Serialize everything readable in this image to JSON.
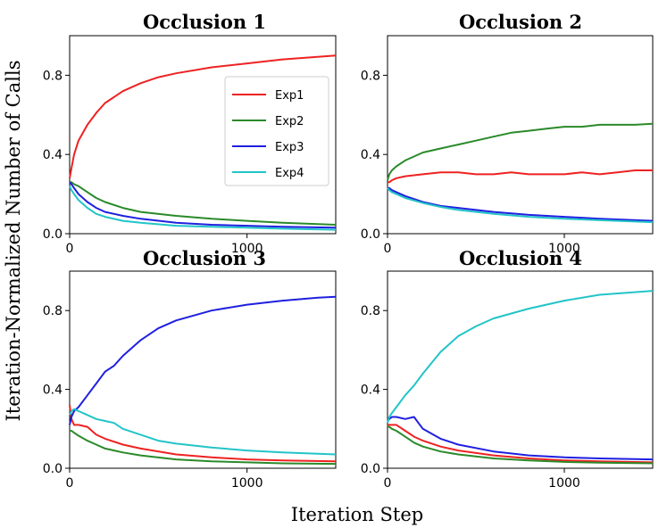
{
  "chart_data": {
    "type": "line",
    "xlabel": "Iteration Step",
    "ylabel": "Iteration-Normalized Number of Calls",
    "xlim": [
      0,
      1500
    ],
    "ylim": [
      0,
      1.0
    ],
    "x_ticks": [
      0,
      1000
    ],
    "y_ticks": [
      0.0,
      0.4,
      0.8
    ],
    "legend": {
      "placement": "inside panel 1, right",
      "entries": [
        "Exp1",
        "Exp2",
        "Exp3",
        "Exp4"
      ]
    },
    "colors": {
      "Exp1": "#ee2222",
      "Exp2": "#2a8a2a",
      "Exp3": "#1f1fe0",
      "Exp4": "#22c4c8"
    },
    "panels": [
      {
        "title": "Occlusion 1",
        "series": [
          {
            "name": "Exp1",
            "x": [
              0,
              10,
              25,
              50,
              100,
              150,
              200,
              300,
              400,
              500,
              600,
              800,
              1000,
              1200,
              1500
            ],
            "values": [
              0.28,
              0.33,
              0.4,
              0.47,
              0.55,
              0.61,
              0.66,
              0.72,
              0.76,
              0.79,
              0.81,
              0.84,
              0.86,
              0.88,
              0.9
            ]
          },
          {
            "name": "Exp2",
            "x": [
              0,
              10,
              25,
              50,
              100,
              150,
              200,
              300,
              400,
              600,
              800,
              1000,
              1200,
              1500
            ],
            "values": [
              0.26,
              0.26,
              0.25,
              0.24,
              0.21,
              0.18,
              0.16,
              0.13,
              0.11,
              0.09,
              0.075,
              0.065,
              0.055,
              0.045
            ]
          },
          {
            "name": "Exp3",
            "x": [
              0,
              10,
              25,
              50,
              100,
              150,
              200,
              300,
              400,
              600,
              800,
              1000,
              1200,
              1500
            ],
            "values": [
              0.26,
              0.25,
              0.23,
              0.2,
              0.16,
              0.13,
              0.11,
              0.09,
              0.075,
              0.055,
              0.045,
              0.04,
              0.035,
              0.03
            ]
          },
          {
            "name": "Exp4",
            "x": [
              0,
              10,
              25,
              50,
              100,
              150,
              200,
              300,
              400,
              600,
              800,
              1000,
              1200,
              1500
            ],
            "values": [
              0.24,
              0.22,
              0.2,
              0.17,
              0.13,
              0.1,
              0.085,
              0.065,
              0.055,
              0.04,
              0.035,
              0.03,
              0.025,
              0.02
            ]
          }
        ]
      },
      {
        "title": "Occlusion 2",
        "series": [
          {
            "name": "Exp1",
            "x": [
              0,
              10,
              25,
              50,
              100,
              200,
              300,
              400,
              500,
              600,
              700,
              800,
              900,
              1000,
              1100,
              1200,
              1300,
              1400,
              1500
            ],
            "values": [
              0.26,
              0.26,
              0.27,
              0.28,
              0.29,
              0.3,
              0.31,
              0.31,
              0.3,
              0.3,
              0.31,
              0.3,
              0.3,
              0.3,
              0.31,
              0.3,
              0.31,
              0.32,
              0.32
            ]
          },
          {
            "name": "Exp2",
            "x": [
              0,
              10,
              25,
              50,
              100,
              200,
              300,
              400,
              500,
              600,
              700,
              800,
              900,
              1000,
              1100,
              1200,
              1300,
              1400,
              1500
            ],
            "values": [
              0.27,
              0.3,
              0.32,
              0.34,
              0.37,
              0.41,
              0.43,
              0.45,
              0.47,
              0.49,
              0.51,
              0.52,
              0.53,
              0.54,
              0.54,
              0.55,
              0.55,
              0.55,
              0.555
            ]
          },
          {
            "name": "Exp3",
            "x": [
              0,
              10,
              25,
              50,
              100,
              200,
              300,
              400,
              600,
              800,
              1000,
              1200,
              1500
            ],
            "values": [
              0.23,
              0.23,
              0.22,
              0.21,
              0.19,
              0.16,
              0.14,
              0.13,
              0.11,
              0.095,
              0.085,
              0.075,
              0.065
            ]
          },
          {
            "name": "Exp4",
            "x": [
              0,
              10,
              25,
              50,
              100,
              200,
              300,
              400,
              600,
              800,
              1000,
              1200,
              1500
            ],
            "values": [
              0.23,
              0.22,
              0.21,
              0.2,
              0.18,
              0.155,
              0.135,
              0.12,
              0.1,
              0.085,
              0.075,
              0.068,
              0.058
            ]
          }
        ]
      },
      {
        "title": "Occlusion 3",
        "series": [
          {
            "name": "Exp1",
            "x": [
              0,
              10,
              25,
              50,
              100,
              150,
              200,
              300,
              400,
              600,
              800,
              1000,
              1200,
              1500
            ],
            "values": [
              0.32,
              0.25,
              0.22,
              0.22,
              0.21,
              0.17,
              0.15,
              0.12,
              0.1,
              0.07,
              0.055,
              0.045,
              0.04,
              0.035
            ]
          },
          {
            "name": "Exp2",
            "x": [
              0,
              10,
              25,
              50,
              100,
              150,
              200,
              300,
              400,
              600,
              800,
              1000,
              1200,
              1500
            ],
            "values": [
              0.19,
              0.19,
              0.18,
              0.165,
              0.14,
              0.12,
              0.1,
              0.08,
              0.065,
              0.045,
              0.035,
              0.03,
              0.025,
              0.022
            ]
          },
          {
            "name": "Exp3",
            "x": [
              0,
              10,
              25,
              50,
              100,
              150,
              200,
              250,
              300,
              400,
              500,
              600,
              800,
              1000,
              1200,
              1400,
              1500
            ],
            "values": [
              0.22,
              0.26,
              0.29,
              0.31,
              0.37,
              0.43,
              0.49,
              0.52,
              0.57,
              0.65,
              0.71,
              0.75,
              0.8,
              0.83,
              0.85,
              0.865,
              0.87
            ]
          },
          {
            "name": "Exp4",
            "x": [
              0,
              10,
              25,
              50,
              100,
              150,
              200,
              250,
              300,
              400,
              500,
              600,
              800,
              1000,
              1200,
              1500
            ],
            "values": [
              0.27,
              0.29,
              0.3,
              0.29,
              0.27,
              0.25,
              0.24,
              0.23,
              0.2,
              0.17,
              0.14,
              0.125,
              0.105,
              0.09,
              0.08,
              0.07
            ]
          }
        ]
      },
      {
        "title": "Occlusion 4",
        "series": [
          {
            "name": "Exp1",
            "x": [
              0,
              10,
              25,
              50,
              100,
              150,
              200,
              300,
              400,
              600,
              800,
              1000,
              1200,
              1500
            ],
            "values": [
              0.22,
              0.22,
              0.22,
              0.22,
              0.19,
              0.16,
              0.14,
              0.11,
              0.09,
              0.065,
              0.05,
              0.04,
              0.035,
              0.03
            ]
          },
          {
            "name": "Exp2",
            "x": [
              0,
              10,
              25,
              50,
              100,
              150,
              200,
              300,
              400,
              600,
              800,
              1000,
              1200,
              1500
            ],
            "values": [
              0.21,
              0.21,
              0.2,
              0.19,
              0.16,
              0.13,
              0.11,
              0.085,
              0.07,
              0.05,
              0.04,
              0.032,
              0.028,
              0.025
            ]
          },
          {
            "name": "Exp3",
            "x": [
              0,
              10,
              25,
              50,
              100,
              150,
              175,
              200,
              300,
              400,
              600,
              800,
              1000,
              1200,
              1500
            ],
            "values": [
              0.24,
              0.25,
              0.26,
              0.26,
              0.25,
              0.26,
              0.23,
              0.2,
              0.15,
              0.12,
              0.085,
              0.065,
              0.055,
              0.05,
              0.045
            ]
          },
          {
            "name": "Exp4",
            "x": [
              0,
              10,
              25,
              50,
              100,
              150,
              200,
              300,
              400,
              500,
              600,
              800,
              1000,
              1200,
              1500
            ],
            "values": [
              0.23,
              0.26,
              0.28,
              0.31,
              0.37,
              0.42,
              0.48,
              0.59,
              0.67,
              0.72,
              0.76,
              0.81,
              0.85,
              0.88,
              0.9
            ]
          }
        ]
      }
    ]
  }
}
